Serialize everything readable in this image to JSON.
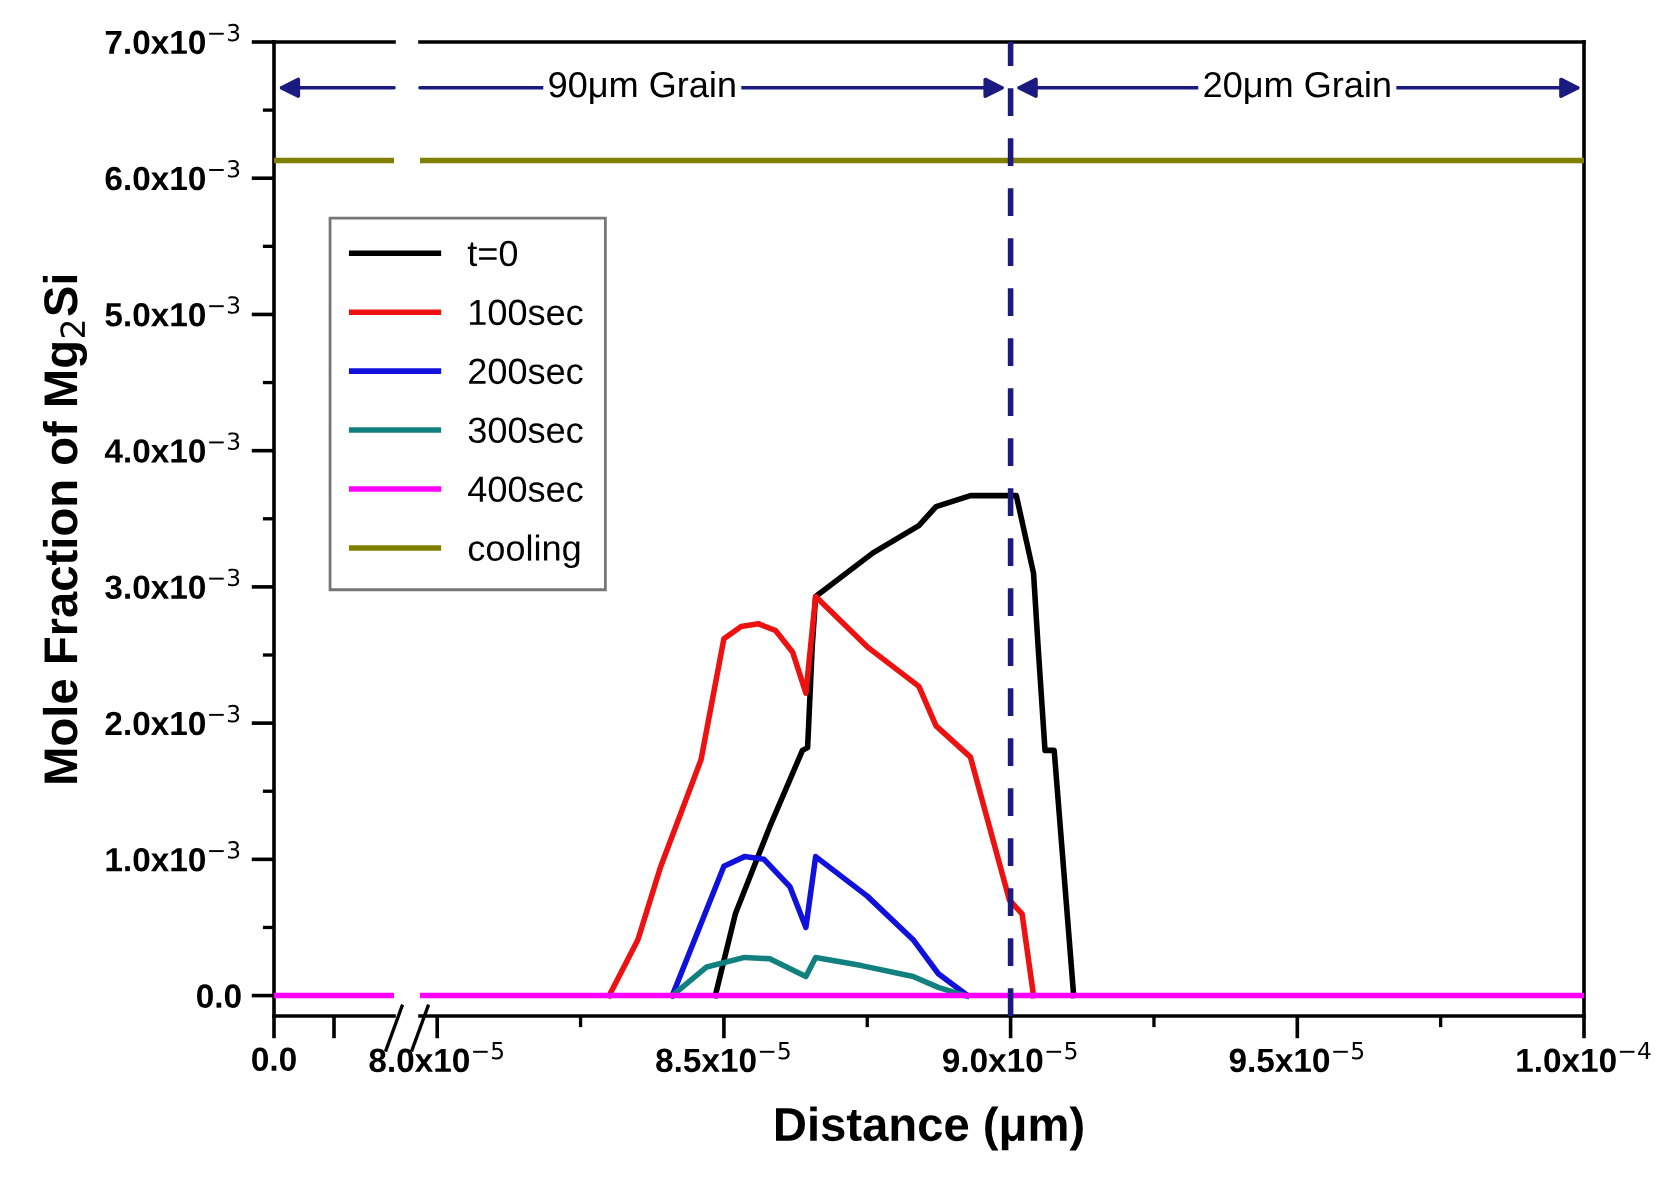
{
  "chart_data": {
    "type": "line",
    "xlabel": "Distance (μm)",
    "ylabel": "Mole Fraction of Mg$_{2}$Si",
    "xlim": [
      7.97e-05,
      0.0001
    ],
    "ylim": [
      -0.00015,
      0.007
    ],
    "xticks": [
      {
        "value": 8e-05,
        "label": "8.0x10$^{−5}$"
      },
      {
        "value": 8.5e-05,
        "label": "8.5x10$^{−5}$"
      },
      {
        "value": 9e-05,
        "label": "9.0x10$^{−5}$"
      },
      {
        "value": 9.5e-05,
        "label": "9.5x10$^{−5}$"
      },
      {
        "value": 0.0001,
        "label": "1.0x10$^{−4}$"
      }
    ],
    "yticks": [
      {
        "value": 0,
        "label": "0.0"
      },
      {
        "value": 0.001,
        "label": "1.0x10$^{−3}$"
      },
      {
        "value": 0.002,
        "label": "2.0x10$^{−3}$"
      },
      {
        "value": 0.003,
        "label": "3.0x10$^{−3}$"
      },
      {
        "value": 0.004,
        "label": "4.0x10$^{−3}$"
      },
      {
        "value": 0.005,
        "label": "5.0x10$^{−3}$"
      },
      {
        "value": 0.006,
        "label": "6.0x10$^{−3}$"
      },
      {
        "value": 0.007,
        "label": "7.0x10$^{−3}$"
      }
    ],
    "grid": false,
    "marker": "none",
    "line_style": "solid",
    "legend": "upper left",
    "ref_lines": [
      {
        "axis": "x",
        "value": 9e-05,
        "label": null,
        "color": "#1a1a80",
        "line_style": "dashed"
      }
    ],
    "annotations": [
      "90μm Grain",
      "20μm Grain",
      "0.0"
    ],
    "series": [
      {
        "name": "t=0",
        "color": "#000000",
        "x": [
          8.485e-05,
          8.52e-05,
          8.58e-05,
          8.637e-05,
          8.646e-05,
          8.654e-05,
          8.66e-05,
          8.76e-05,
          8.84e-05,
          8.87e-05,
          8.93e-05,
          9.01e-05,
          9.04e-05,
          9.048e-05,
          9.06e-05,
          9.076e-05,
          9.11e-05
        ],
        "values": [
          0,
          0.0006,
          0.00124,
          0.0018,
          0.00182,
          0.00256,
          0.00293,
          0.00325,
          0.00345,
          0.00359,
          0.00367,
          0.00367,
          0.0031,
          0.00256,
          0.0018,
          0.0018,
          0
        ]
      },
      {
        "name": "100sec",
        "color": "#ee1111",
        "x": [
          8.3e-05,
          8.35e-05,
          8.39e-05,
          8.46e-05,
          8.5e-05,
          8.53e-05,
          8.56e-05,
          8.59e-05,
          8.62e-05,
          8.643e-05,
          8.66e-05,
          8.75e-05,
          8.84e-05,
          8.87e-05,
          8.93e-05,
          8.998e-05,
          9.02e-05,
          9.04e-05
        ],
        "values": [
          0,
          0.00041,
          0.00095,
          0.00173,
          0.00262,
          0.00271,
          0.00273,
          0.00268,
          0.00252,
          0.00222,
          0.00293,
          0.00256,
          0.00227,
          0.00198,
          0.00175,
          0.0007,
          0.0006,
          0
        ]
      },
      {
        "name": "200sec",
        "color": "#1111dd",
        "x": [
          8.41e-05,
          8.5e-05,
          8.536e-05,
          8.57e-05,
          8.615e-05,
          8.643e-05,
          8.66e-05,
          8.75e-05,
          8.83e-05,
          8.874e-05,
          8.925e-05
        ],
        "values": [
          0,
          0.00095,
          0.00102,
          0.001,
          0.0008,
          0.0005,
          0.00102,
          0.00073,
          0.00041,
          0.00016,
          0
        ]
      },
      {
        "name": "300sec",
        "color": "#138080",
        "x": [
          8.41e-05,
          8.47e-05,
          8.536e-05,
          8.58e-05,
          8.643e-05,
          8.66e-05,
          8.74e-05,
          8.83e-05,
          8.874e-05,
          8.92e-05
        ],
        "values": [
          0,
          0.00021,
          0.00028,
          0.00027,
          0.00014,
          0.00028,
          0.00022,
          0.00014,
          6e-05,
          0
        ]
      },
      {
        "name": "400sec",
        "color": "#ff00ff",
        "x": [
          7.97e-05,
          0.0001
        ],
        "values": [
          0,
          0
        ]
      },
      {
        "name": "cooling",
        "color": "#808000",
        "x": [
          7.97e-05,
          0.0001
        ],
        "values": [
          0.00613,
          0.00613
        ]
      }
    ]
  }
}
